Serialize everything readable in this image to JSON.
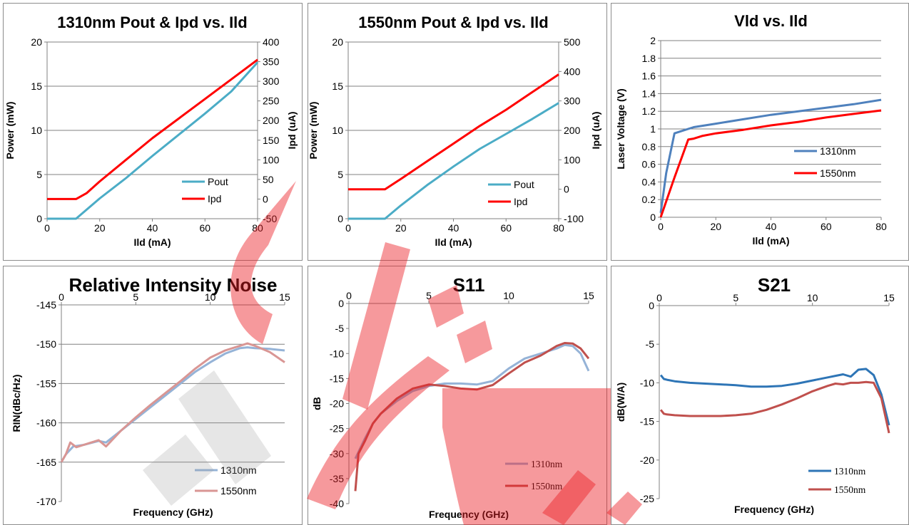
{
  "chart_data": [
    {
      "type": "line",
      "title": "1310nm Pout & Ipd vs. Ild",
      "xlabel": "Ild (mA)",
      "ylabel": "Power (mW)",
      "y2label": "Ipd (uA)",
      "xlim": [
        0,
        80
      ],
      "ylim": [
        0,
        20
      ],
      "y2lim": [
        -50,
        400
      ],
      "xticks": [
        "0",
        "20",
        "40",
        "60",
        "80"
      ],
      "yticks": [
        "0",
        "5",
        "10",
        "15",
        "20"
      ],
      "y2ticks": [
        "-50",
        "0",
        "50",
        "100",
        "150",
        "200",
        "250",
        "300",
        "350",
        "400"
      ],
      "grid": true,
      "legend": "bottom-right",
      "series": [
        {
          "name": "Pout",
          "axis": "left",
          "color": "#4bacc6",
          "x": [
            0,
            11,
            20,
            30,
            40,
            50,
            60,
            70,
            80
          ],
          "y": [
            0,
            0,
            2.3,
            4.6,
            7.1,
            9.5,
            11.9,
            14.4,
            17.7
          ]
        },
        {
          "name": "Ipd",
          "axis": "right",
          "color": "#ff0000",
          "x": [
            0,
            11,
            15,
            20,
            30,
            40,
            50,
            60,
            70,
            80
          ],
          "y": [
            0,
            0,
            15,
            45,
            100,
            155,
            205,
            255,
            305,
            355
          ]
        }
      ]
    },
    {
      "type": "line",
      "title": "1550nm Pout & Ipd vs. Ild",
      "xlabel": "Ild (mA)",
      "ylabel": "Power (mW)",
      "y2label": "Ipd (uA)",
      "xlim": [
        0,
        80
      ],
      "ylim": [
        0,
        20
      ],
      "y2lim": [
        -100,
        500
      ],
      "xticks": [
        "0",
        "20",
        "40",
        "60",
        "80"
      ],
      "yticks": [
        "0",
        "5",
        "10",
        "15",
        "20"
      ],
      "y2ticks": [
        "-100",
        "0",
        "100",
        "200",
        "300",
        "400",
        "500"
      ],
      "grid": true,
      "legend": "bottom-right",
      "series": [
        {
          "name": "Pout",
          "axis": "left",
          "color": "#4bacc6",
          "x": [
            0,
            14,
            20,
            30,
            40,
            50,
            60,
            70,
            80
          ],
          "y": [
            0,
            0,
            1.5,
            3.8,
            5.9,
            7.9,
            9.6,
            11.3,
            13.1
          ]
        },
        {
          "name": "Ipd",
          "axis": "right",
          "color": "#ff0000",
          "x": [
            0,
            14,
            20,
            30,
            40,
            50,
            60,
            70,
            80
          ],
          "y": [
            0,
            0,
            35,
            95,
            155,
            215,
            270,
            330,
            390
          ]
        }
      ]
    },
    {
      "type": "line",
      "title": "Vld vs. Ild",
      "xlabel": "Ild (mA)",
      "ylabel": "Laser Voltage  (V)",
      "xlim": [
        0,
        80
      ],
      "ylim": [
        0,
        2
      ],
      "xticks": [
        "0",
        "20",
        "40",
        "60",
        "80"
      ],
      "yticks": [
        "0",
        "0.2",
        "0.4",
        "0.6",
        "0.8",
        "1",
        "1.2",
        "1.4",
        "1.6",
        "1.8",
        "2"
      ],
      "grid": true,
      "legend": "right",
      "series": [
        {
          "name": "1310nm",
          "color": "#4f81bd",
          "x": [
            0,
            2,
            5,
            7,
            12,
            20,
            30,
            40,
            50,
            60,
            70,
            80
          ],
          "y": [
            0.05,
            0.5,
            0.95,
            0.97,
            1.02,
            1.06,
            1.11,
            1.16,
            1.2,
            1.24,
            1.28,
            1.33
          ]
        },
        {
          "name": "1550nm",
          "color": "#ff0000",
          "x": [
            0,
            5,
            10,
            12,
            15,
            20,
            30,
            40,
            50,
            60,
            70,
            80
          ],
          "y": [
            0,
            0.45,
            0.88,
            0.89,
            0.92,
            0.95,
            0.99,
            1.04,
            1.08,
            1.13,
            1.17,
            1.21
          ]
        }
      ]
    },
    {
      "type": "line",
      "title": "Relative Intensity Noise",
      "xlabel": "Frequency (GHz)",
      "ylabel": "RIN(dBc/Hz)",
      "xlim": [
        0,
        15
      ],
      "ylim": [
        -170,
        -145
      ],
      "xticks": [
        "0",
        "5",
        "10",
        "15"
      ],
      "yticks": [
        "-145",
        "-150",
        "-155",
        "-160",
        "-165",
        "-170"
      ],
      "grid": true,
      "legend": "bottom-right",
      "series": [
        {
          "name": "1310nm",
          "color": "#95b3d7",
          "x": [
            0,
            0.3,
            0.8,
            1.5,
            2.5,
            3,
            4,
            5,
            6,
            7,
            8,
            9,
            10,
            11,
            12,
            12.5,
            13,
            14,
            15
          ],
          "y": [
            -165,
            -164,
            -163,
            -162.8,
            -162.3,
            -162.5,
            -161,
            -159.5,
            -158,
            -156.5,
            -155,
            -153.5,
            -152.3,
            -151.2,
            -150.5,
            -150.4,
            -150.5,
            -150.6,
            -150.8
          ]
        },
        {
          "name": "1550nm",
          "color": "#d99694",
          "x": [
            0,
            0.3,
            0.6,
            1,
            1.5,
            2.5,
            3,
            4,
            5,
            6,
            7,
            8,
            9,
            10,
            11,
            12,
            12.5,
            13,
            14,
            15
          ],
          "y": [
            -165,
            -164,
            -162.5,
            -163.1,
            -162.8,
            -162.2,
            -163,
            -161,
            -159.3,
            -157.7,
            -156.2,
            -154.7,
            -153.1,
            -151.7,
            -150.8,
            -150.2,
            -149.9,
            -150.2,
            -151,
            -152.3
          ]
        }
      ]
    },
    {
      "type": "line",
      "title": "S11",
      "xlabel": "Frequency (GHz)",
      "ylabel": "dB",
      "xlim": [
        0,
        15
      ],
      "ylim": [
        -40,
        0
      ],
      "xticks": [
        "0",
        "5",
        "10",
        "15"
      ],
      "yticks": [
        "0",
        "-5",
        "-10",
        "-15",
        "-20",
        "-25",
        "-30",
        "-35",
        "-40"
      ],
      "grid": false,
      "legend": "bottom-right",
      "series": [
        {
          "name": "1310nm",
          "color": "#95b3d7",
          "x": [
            0.4,
            0.7,
            1,
            1.5,
            2,
            3,
            4,
            5,
            6,
            7,
            8,
            9,
            10,
            11,
            12,
            13,
            13.5,
            14,
            14.5,
            15
          ],
          "y": [
            -31,
            -29,
            -27,
            -24,
            -22,
            -19.5,
            -17.5,
            -16.5,
            -16,
            -16,
            -16.2,
            -15.5,
            -13,
            -11,
            -10,
            -9,
            -8.3,
            -8.5,
            -10,
            -13.5
          ]
        },
        {
          "name": "1550nm",
          "color": "#c0504d",
          "x": [
            0.4,
            0.6,
            1,
            1.5,
            2,
            3,
            4,
            5,
            6,
            7,
            8,
            9,
            10,
            11,
            12,
            13,
            13.5,
            14,
            14.5,
            15
          ],
          "y": [
            -37.5,
            -30,
            -27.5,
            -24,
            -22,
            -19,
            -17,
            -16.2,
            -16.5,
            -17,
            -17.2,
            -16.3,
            -14,
            -11.8,
            -10.4,
            -8.5,
            -7.9,
            -8,
            -9,
            -11
          ]
        }
      ]
    },
    {
      "type": "line",
      "title": "S21",
      "xlabel": "Frequency (GHz)",
      "ylabel": "dB(W/A)",
      "xlim": [
        0,
        15
      ],
      "ylim": [
        -25,
        0
      ],
      "xticks": [
        "0",
        "5",
        "10",
        "15"
      ],
      "yticks": [
        "0",
        "-5",
        "-10",
        "-15",
        "-20",
        "-25"
      ],
      "grid": false,
      "legend": "bottom-right",
      "series": [
        {
          "name": "1310nm",
          "color": "#2e75b6",
          "x": [
            0.1,
            0.3,
            0.5,
            1,
            2,
            3,
            4,
            5,
            6,
            7,
            8,
            9,
            10,
            11,
            11.5,
            12,
            12.5,
            13,
            13.5,
            14,
            14.5,
            15
          ],
          "y": [
            -9,
            -9.5,
            -9.6,
            -9.8,
            -10,
            -10.1,
            -10.2,
            -10.3,
            -10.5,
            -10.5,
            -10.4,
            -10.1,
            -9.7,
            -9.3,
            -9.1,
            -8.9,
            -9.2,
            -8.3,
            -8.2,
            -9,
            -11.5,
            -15.5
          ]
        },
        {
          "name": "1550nm",
          "color": "#c0504d",
          "x": [
            0.1,
            0.3,
            0.5,
            1,
            2,
            3,
            4,
            5,
            6,
            7,
            8,
            9,
            10,
            11,
            11.5,
            12,
            12.5,
            13,
            13.5,
            14,
            14.5,
            15
          ],
          "y": [
            -13.5,
            -14,
            -14.1,
            -14.2,
            -14.3,
            -14.3,
            -14.3,
            -14.2,
            -14,
            -13.5,
            -12.8,
            -12,
            -11.1,
            -10.4,
            -10.1,
            -10.2,
            -10,
            -10,
            -9.9,
            -10,
            -12,
            -16.5
          ]
        }
      ]
    }
  ]
}
